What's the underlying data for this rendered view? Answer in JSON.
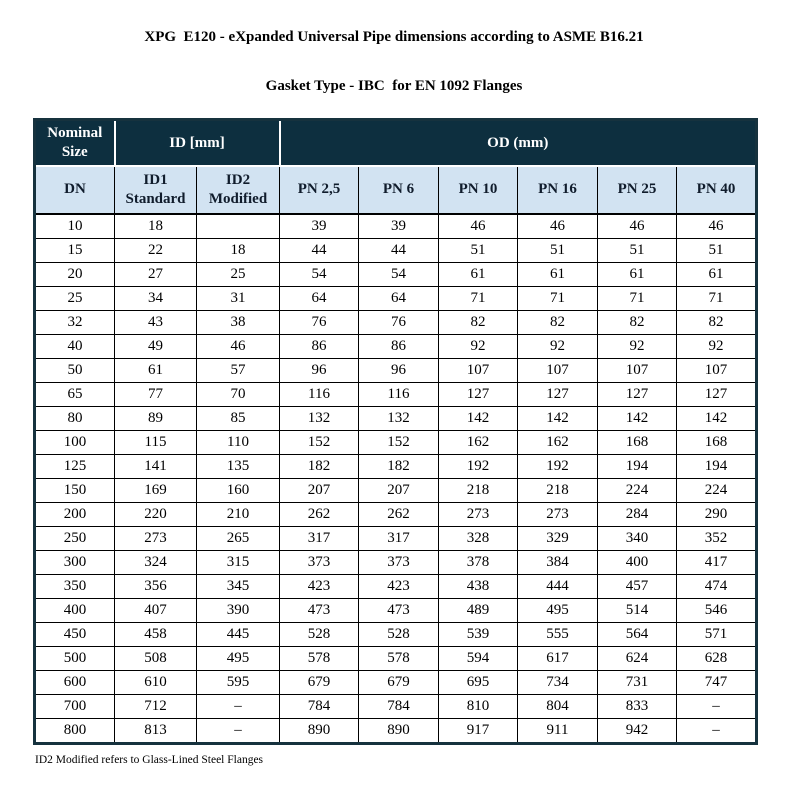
{
  "page": {
    "title": "XPG  E120 - eXpanded Universal Pipe dimensions according to ASME B16.21",
    "subtitle": "Gasket Type - IBC  for EN 1092 Flanges",
    "footnote": "ID2 Modified refers to Glass-Lined Steel Flanges"
  },
  "colors": {
    "header_bg": "#0d2f3f",
    "subheader_bg": "#d2e3f2",
    "subheader_text": "#101c2c",
    "table_border": "#16323e"
  },
  "table": {
    "group_headers": [
      {
        "label": "Nominal\nSize",
        "colspan": "1"
      },
      {
        "label": "ID [mm]",
        "colspan": "2"
      },
      {
        "label": "OD (mm)",
        "colspan": "6"
      }
    ],
    "columns": [
      "DN",
      "ID1\nStandard",
      "ID2\nModified",
      "PN 2,5",
      "PN 6",
      "PN 10",
      "PN 16",
      "PN 25",
      "PN 40"
    ],
    "rows": [
      [
        "10",
        "18",
        "",
        "39",
        "39",
        "46",
        "46",
        "46",
        "46"
      ],
      [
        "15",
        "22",
        "18",
        "44",
        "44",
        "51",
        "51",
        "51",
        "51"
      ],
      [
        "20",
        "27",
        "25",
        "54",
        "54",
        "61",
        "61",
        "61",
        "61"
      ],
      [
        "25",
        "34",
        "31",
        "64",
        "64",
        "71",
        "71",
        "71",
        "71"
      ],
      [
        "32",
        "43",
        "38",
        "76",
        "76",
        "82",
        "82",
        "82",
        "82"
      ],
      [
        "40",
        "49",
        "46",
        "86",
        "86",
        "92",
        "92",
        "92",
        "92"
      ],
      [
        "50",
        "61",
        "57",
        "96",
        "96",
        "107",
        "107",
        "107",
        "107"
      ],
      [
        "65",
        "77",
        "70",
        "116",
        "116",
        "127",
        "127",
        "127",
        "127"
      ],
      [
        "80",
        "89",
        "85",
        "132",
        "132",
        "142",
        "142",
        "142",
        "142"
      ],
      [
        "100",
        "115",
        "110",
        "152",
        "152",
        "162",
        "162",
        "168",
        "168"
      ],
      [
        "125",
        "141",
        "135",
        "182",
        "182",
        "192",
        "192",
        "194",
        "194"
      ],
      [
        "150",
        "169",
        "160",
        "207",
        "207",
        "218",
        "218",
        "224",
        "224"
      ],
      [
        "200",
        "220",
        "210",
        "262",
        "262",
        "273",
        "273",
        "284",
        "290"
      ],
      [
        "250",
        "273",
        "265",
        "317",
        "317",
        "328",
        "329",
        "340",
        "352"
      ],
      [
        "300",
        "324",
        "315",
        "373",
        "373",
        "378",
        "384",
        "400",
        "417"
      ],
      [
        "350",
        "356",
        "345",
        "423",
        "423",
        "438",
        "444",
        "457",
        "474"
      ],
      [
        "400",
        "407",
        "390",
        "473",
        "473",
        "489",
        "495",
        "514",
        "546"
      ],
      [
        "450",
        "458",
        "445",
        "528",
        "528",
        "539",
        "555",
        "564",
        "571"
      ],
      [
        "500",
        "508",
        "495",
        "578",
        "578",
        "594",
        "617",
        "624",
        "628"
      ],
      [
        "600",
        "610",
        "595",
        "679",
        "679",
        "695",
        "734",
        "731",
        "747"
      ],
      [
        "700",
        "712",
        "–",
        "784",
        "784",
        "810",
        "804",
        "833",
        "–"
      ],
      [
        "800",
        "813",
        "–",
        "890",
        "890",
        "917",
        "911",
        "942",
        "–"
      ]
    ]
  }
}
